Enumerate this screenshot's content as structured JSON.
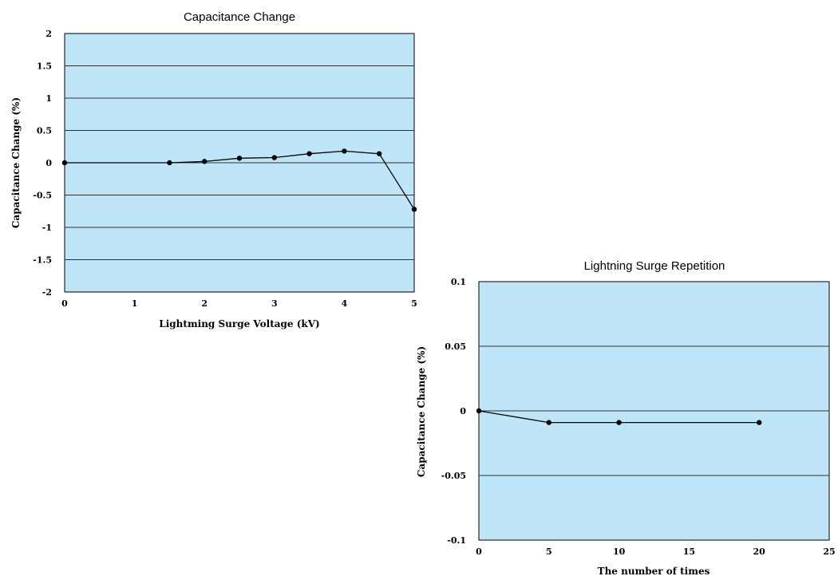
{
  "chart_data": [
    {
      "type": "line",
      "title": "Capacitance Change",
      "xlabel": "Lightming Surge Voltage (kV)",
      "ylabel": "Capacitance Change (%)",
      "xlim": [
        0,
        5
      ],
      "ylim": [
        -2,
        2
      ],
      "x_ticks": [
        "0",
        "1",
        "2",
        "3",
        "4",
        "5"
      ],
      "y_ticks": [
        "2",
        "1.5",
        "1",
        "0.5",
        "0",
        "-0.5",
        "-1",
        "-1.5",
        "-2"
      ],
      "grid": "horizontal",
      "series": [
        {
          "x": [
            0,
            1.5,
            2,
            2.5,
            3,
            3.5,
            4,
            4.5,
            5
          ],
          "y": [
            0,
            0,
            0.02,
            0.07,
            0.08,
            0.14,
            0.18,
            0.14,
            -0.72
          ]
        }
      ]
    },
    {
      "type": "line",
      "title": "Lightning Surge Repetition",
      "xlabel": "The number of times",
      "ylabel": "Capacitance Change (%)",
      "xlim": [
        0,
        25
      ],
      "ylim": [
        -0.1,
        0.1
      ],
      "x_ticks": [
        "0",
        "5",
        "10",
        "15",
        "20",
        "25"
      ],
      "y_ticks": [
        "0.1",
        "0.05",
        "0",
        "-0.05",
        "-0.1"
      ],
      "grid": "horizontal",
      "series": [
        {
          "x": [
            0,
            5,
            10,
            20
          ],
          "y": [
            0,
            -0.009,
            -0.009,
            -0.009
          ]
        }
      ]
    }
  ]
}
